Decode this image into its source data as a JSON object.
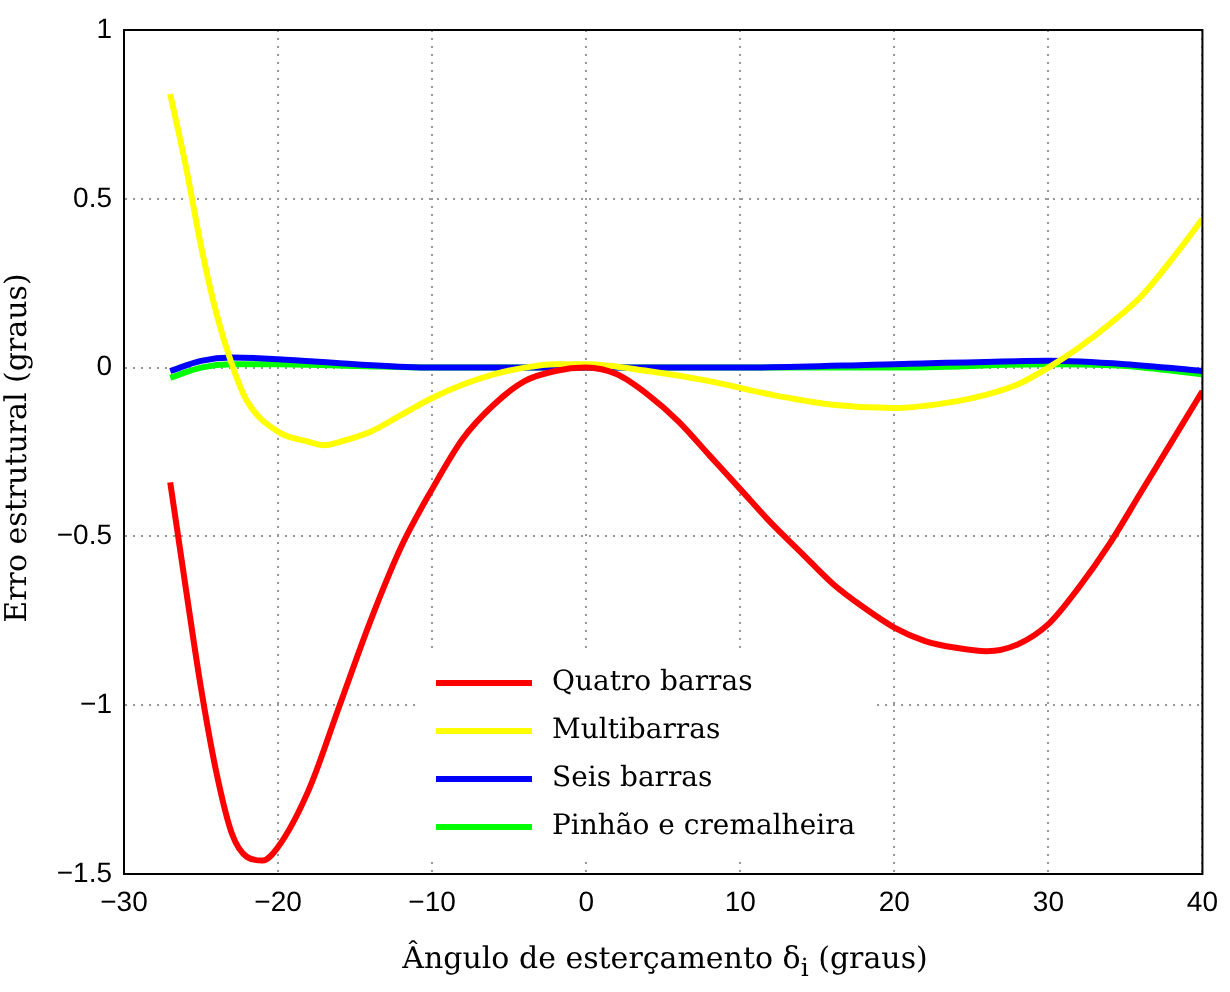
{
  "chart_data": {
    "type": "line",
    "xlabel": "Ângulo de esterçamento δ$_{i}$ (graus)",
    "ylabel": "Erro estrutural (graus)",
    "xlim": [
      -30,
      40
    ],
    "xticks": [
      -30,
      -20,
      -10,
      0,
      10,
      20,
      30,
      40
    ],
    "ylim": [
      -1.5,
      1
    ],
    "yticks": [
      -1.5,
      -1,
      -0.5,
      0,
      0.5,
      1
    ],
    "grid": true,
    "legend": "bottom",
    "marker": "none",
    "line_style": "solid",
    "series": [
      {
        "name": "Quatro barras",
        "color": "#ff0000",
        "x": [
          -27,
          -26,
          -25,
          -24,
          -23,
          -22,
          -21,
          -20,
          -18,
          -16,
          -14,
          -12,
          -10,
          -8,
          -6,
          -4,
          -2,
          0,
          2,
          4,
          6,
          8,
          10,
          12,
          14,
          16,
          18,
          20,
          22,
          24,
          26,
          28,
          30,
          32,
          34,
          36,
          38,
          40
        ],
        "values": [
          -0.34,
          -0.65,
          -0.95,
          -1.2,
          -1.38,
          -1.45,
          -1.46,
          -1.42,
          -1.25,
          -1.0,
          -0.75,
          -0.53,
          -0.36,
          -0.21,
          -0.11,
          -0.04,
          -0.01,
          0,
          -0.02,
          -0.08,
          -0.16,
          -0.26,
          -0.36,
          -0.46,
          -0.55,
          -0.64,
          -0.71,
          -0.77,
          -0.81,
          -0.83,
          -0.84,
          -0.82,
          -0.76,
          -0.65,
          -0.52,
          -0.37,
          -0.22,
          -0.07
        ]
      },
      {
        "name": "Multibarras",
        "color": "#ffff00",
        "x": [
          -27,
          -26,
          -25,
          -24,
          -23,
          -22,
          -20,
          -18,
          -17,
          -16,
          -14,
          -12,
          -10,
          -8,
          -6,
          -4,
          -2,
          0,
          4,
          8,
          12,
          16,
          20,
          24,
          26,
          28,
          30,
          32,
          34,
          36,
          38,
          40
        ],
        "values": [
          0.81,
          0.6,
          0.36,
          0.16,
          0.01,
          -0.1,
          -0.19,
          -0.22,
          -0.23,
          -0.22,
          -0.19,
          -0.14,
          -0.09,
          -0.05,
          -0.02,
          0,
          0.01,
          0.01,
          -0.01,
          -0.04,
          -0.08,
          -0.11,
          -0.12,
          -0.1,
          -0.08,
          -0.05,
          0,
          0.06,
          0.13,
          0.21,
          0.32,
          0.44
        ]
      },
      {
        "name": "Seis barras",
        "color": "#0000ff",
        "x": [
          -27,
          -25,
          -23,
          -20,
          -15,
          -10,
          0,
          10,
          20,
          30,
          35,
          40
        ],
        "values": [
          -0.01,
          0.02,
          0.03,
          0.025,
          0.01,
          0,
          0,
          0,
          0.01,
          0.02,
          0.01,
          -0.01
        ]
      },
      {
        "name": "Pinhão e cremalheira",
        "color": "#00ff00",
        "x": [
          -27,
          -25,
          -23,
          -20,
          -15,
          -10,
          0,
          20,
          30,
          35,
          40
        ],
        "values": [
          -0.03,
          0,
          0.01,
          0.01,
          0.005,
          0,
          0,
          0,
          0.01,
          0.005,
          -0.02
        ]
      }
    ]
  }
}
